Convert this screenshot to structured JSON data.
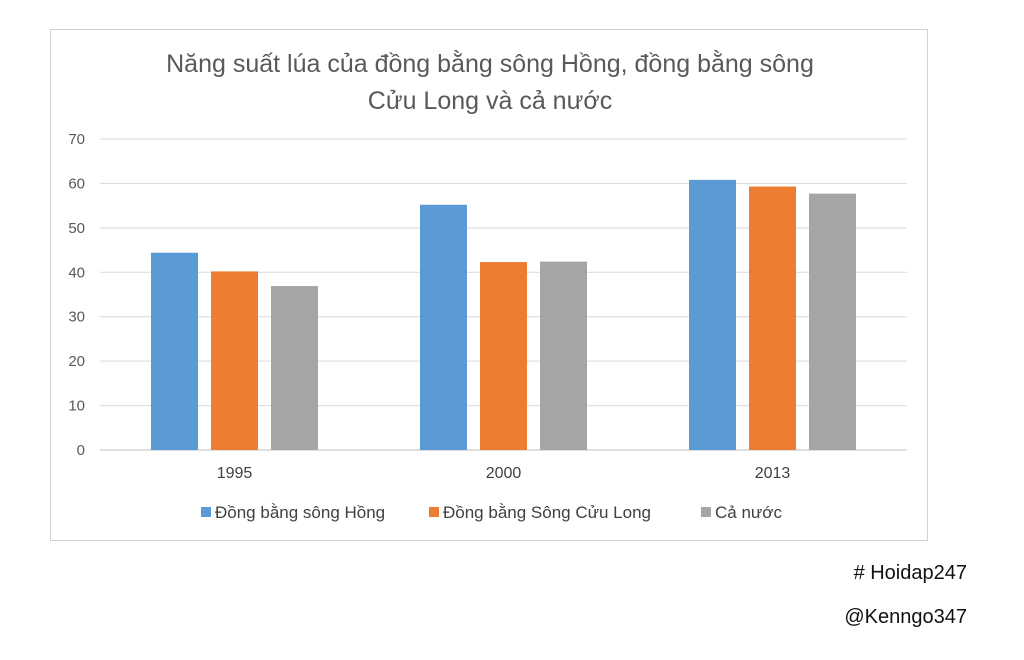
{
  "chart_data": {
    "type": "bar",
    "title_lines": [
      "Năng suất lúa của đồng bằng sông Hồng, đồng bằng sông",
      "Cửu Long và cả nước"
    ],
    "categories": [
      "1995",
      "2000",
      "2013"
    ],
    "series": [
      {
        "name": "Đồng bằng sông Hồng",
        "values": [
          44.4,
          55.2,
          60.8
        ],
        "color": "#5B9BD5"
      },
      {
        "name": "Đồng bằng Sông Cửu Long",
        "values": [
          40.2,
          42.3,
          59.3
        ],
        "color": "#ED7D31"
      },
      {
        "name": "Cả nước",
        "values": [
          36.9,
          42.4,
          57.7
        ],
        "color": "#A5A5A5"
      }
    ],
    "ylim": [
      0,
      70
    ],
    "yticks": [
      "0",
      "10",
      "20",
      "30",
      "40",
      "50",
      "60",
      "70"
    ],
    "grid": true,
    "legend_position": "bottom",
    "xlabel": "",
    "ylabel": ""
  },
  "watermarks": {
    "tag": "# Hoidap247",
    "author": "@Kenngo347"
  }
}
